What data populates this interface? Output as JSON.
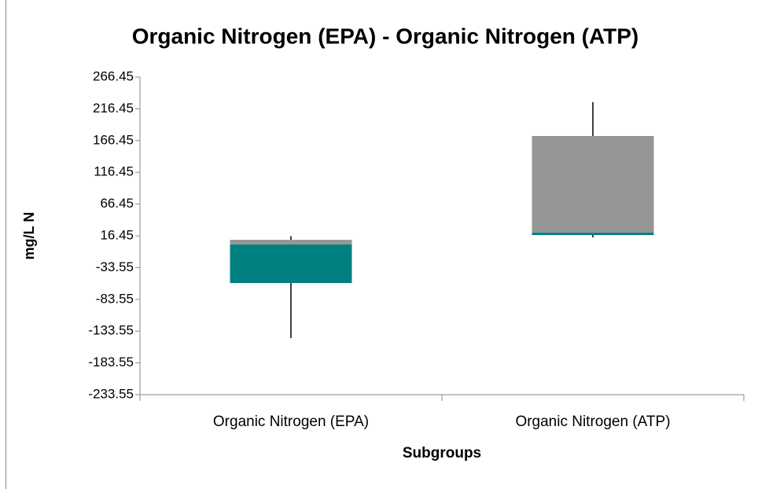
{
  "chart_data": {
    "type": "box",
    "title": "Organic Nitrogen (EPA) - Organic Nitrogen (ATP)",
    "x_label": "Subgroups",
    "y_label": "mg/L N",
    "categories": [
      "Organic Nitrogen (EPA)",
      "Organic Nitrogen (ATP)"
    ],
    "boxes": [
      {
        "min": -144.4,
        "q1": -57.8,
        "median": 2.9,
        "q3": 10.2,
        "max": 16.0
      },
      {
        "min": 14.0,
        "q1": 17.7,
        "median": 21.4,
        "q3": 173.6,
        "max": 226.9
      }
    ],
    "lower_color": "#008080",
    "upper_color": "#969696",
    "ylim": [
      -233.55,
      266.45
    ],
    "yticks": [
      -233.55,
      -183.55,
      -133.55,
      -83.55,
      -33.55,
      16.45,
      66.45,
      116.45,
      166.45,
      216.45,
      266.45
    ]
  }
}
